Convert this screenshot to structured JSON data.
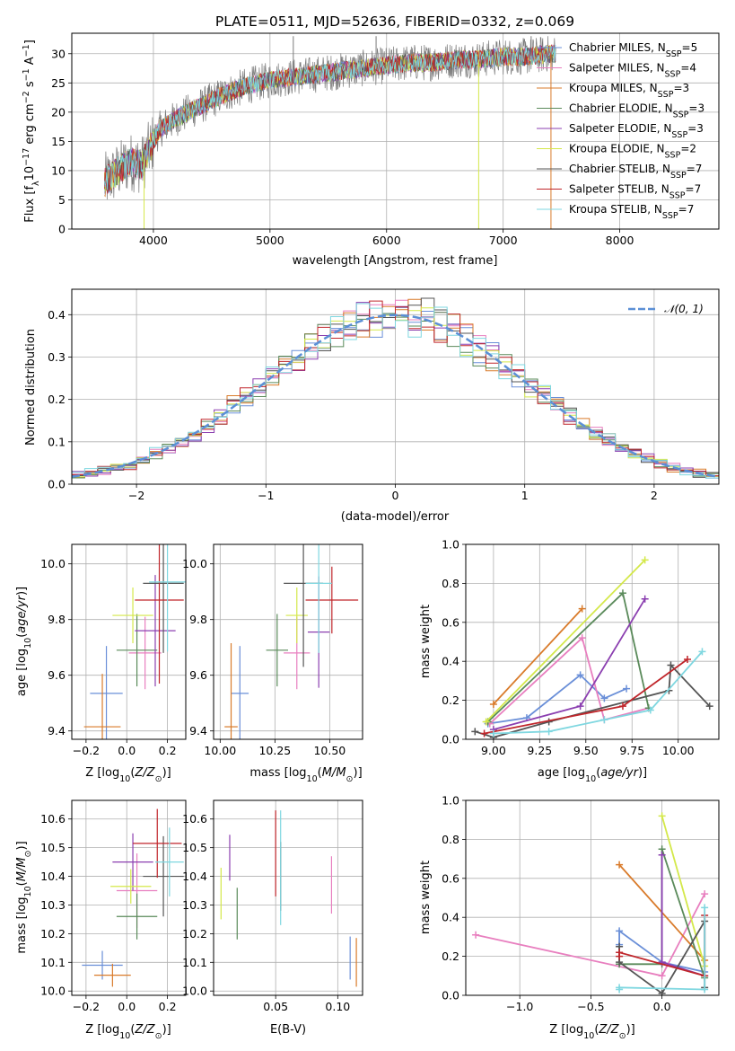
{
  "title": "PLATE=0511, MJD=52636, FIBERID=0332, z=0.069",
  "colors": {
    "chabrier_miles": "#6a8fd8",
    "salpeter_miles": "#e87fbf",
    "kroupa_miles": "#d97b2b",
    "chabrier_elodie": "#5a8a5a",
    "salpeter_elodie": "#8b3fb0",
    "kroupa_elodie": "#d4e84a",
    "chabrier_stelib": "#555555",
    "salpeter_stelib": "#c0262b",
    "kroupa_stelib": "#7fd7e0",
    "data_spectrum": "#7a7a7a",
    "normal_curve": "#5b8fd6"
  },
  "chart_data": [
    {
      "id": "spectrum",
      "type": "line",
      "xlabel": "wavelength [Angstrom, rest frame]",
      "ylabel": "Flux [f_λ 10^-17 erg cm^-2 s^-1 A^-1]",
      "xlim": [
        3300,
        8850
      ],
      "ylim": [
        0,
        33.5
      ],
      "xticks": [
        "4000",
        "5000",
        "6000",
        "7000",
        "8000"
      ],
      "yticks": [
        "0",
        "5",
        "10",
        "15",
        "20",
        "25",
        "30"
      ],
      "legend_position": "right",
      "legend": [
        "Chabrier MILES, N_SSP=5",
        "Salpeter MILES, N_SSP=4",
        "Kroupa MILES, N_SSP=3",
        "Chabrier ELODIE, N_SSP=3",
        "Salpeter ELODIE, N_SSP=3",
        "Kroupa ELODIE, N_SSP=2",
        "Chabrier STELIB, N_SSP=7",
        "Salpeter STELIB, N_SSP=7",
        "Kroupa STELIB, N_SSP=7"
      ],
      "continuum": {
        "x": [
          3580,
          3700,
          3800,
          3900,
          3950,
          4050,
          4200,
          4400,
          4600,
          4800,
          5000,
          5200,
          5400,
          5600,
          5800,
          6000,
          6200,
          6400,
          6600,
          6800,
          7000,
          7200,
          7400
        ],
        "y": [
          8,
          10,
          11.5,
          11,
          13,
          17,
          19,
          21,
          23,
          24.5,
          25.5,
          26,
          26.5,
          27,
          27.5,
          28,
          28.5,
          28.5,
          29,
          29,
          29.5,
          29.5,
          30
        ]
      },
      "spikes": [
        {
          "x": 3920,
          "y": 0
        },
        {
          "x": 5200,
          "y": 33
        },
        {
          "x": 5910,
          "y": 33
        },
        {
          "x": 6790,
          "y": 0
        },
        {
          "x": 7410,
          "y": 0
        },
        {
          "x": 7240,
          "y": 33
        }
      ]
    },
    {
      "id": "residuals",
      "type": "histogram",
      "xlabel": "(data-model)/error",
      "ylabel": "Normed distribution",
      "xlim": [
        -2.5,
        2.5
      ],
      "ylim": [
        0,
        0.46
      ],
      "xticks": [
        "−2",
        "−1",
        "0",
        "1",
        "2"
      ],
      "yticks": [
        "0.0",
        "0.1",
        "0.2",
        "0.3",
        "0.4"
      ],
      "legend_position": "top-right",
      "legend": "𝒩(0, 1)",
      "bin_width": 0.1,
      "bin_start": -2.5
    },
    {
      "id": "age_vs_Z",
      "type": "scatter",
      "xlabel": "Z [log10(Z/Z_sun)]",
      "ylabel": "age [log10(age/yr)]",
      "xlim": [
        -0.27,
        0.29
      ],
      "ylim": [
        9.37,
        10.07
      ],
      "xticks": [
        "−0.2",
        "0.0",
        "0.2"
      ],
      "yticks": [
        "9.4",
        "9.6",
        "9.8",
        "10.0"
      ],
      "points": [
        {
          "x": -0.1,
          "y": 9.535,
          "xerr": 0.08,
          "yerr": 0.17
        },
        {
          "x": 0.09,
          "y": 9.68,
          "xerr": 0.08,
          "yerr": 0.13
        },
        {
          "x": -0.12,
          "y": 9.415,
          "xerr": 0.09,
          "yerr": 0.19
        },
        {
          "x": 0.05,
          "y": 9.69,
          "xerr": 0.1,
          "yerr": 0.13
        },
        {
          "x": 0.14,
          "y": 9.76,
          "xerr": 0.1,
          "yerr": 0.2
        },
        {
          "x": 0.03,
          "y": 9.815,
          "xerr": 0.1,
          "yerr": 0.1
        },
        {
          "x": 0.18,
          "y": 9.93,
          "xerr": 0.1,
          "yerr": 0.25
        },
        {
          "x": 0.16,
          "y": 9.87,
          "xerr": 0.12,
          "yerr": 0.3
        },
        {
          "x": 0.2,
          "y": 9.935,
          "xerr": 0.09,
          "yerr": 0.25
        }
      ]
    },
    {
      "id": "age_vs_mass",
      "type": "scatter",
      "xlabel": "mass [log10(M/M_sun)]",
      "ylabel": "",
      "xlim": [
        9.97,
        10.65
      ],
      "ylim": [
        9.37,
        10.07
      ],
      "xticks": [
        "10.00",
        "10.25",
        "10.50"
      ],
      "yticks": [
        "9.4",
        "9.6",
        "9.8",
        "10.0"
      ],
      "points": [
        {
          "x": 10.09,
          "y": 9.535,
          "xerr": 0.04,
          "yerr": 0.17
        },
        {
          "x": 10.35,
          "y": 9.68,
          "xerr": 0.06,
          "yerr": 0.13
        },
        {
          "x": 10.05,
          "y": 9.415,
          "xerr": 0.03,
          "yerr": 0.3
        },
        {
          "x": 10.26,
          "y": 9.69,
          "xerr": 0.05,
          "yerr": 0.13
        },
        {
          "x": 10.45,
          "y": 9.755,
          "xerr": 0.05,
          "yerr": 0.2
        },
        {
          "x": 10.35,
          "y": 9.815,
          "xerr": 0.05,
          "yerr": 0.1
        },
        {
          "x": 10.38,
          "y": 9.93,
          "xerr": 0.09,
          "yerr": 0.3
        },
        {
          "x": 10.51,
          "y": 9.87,
          "xerr": 0.12,
          "yerr": 0.12
        },
        {
          "x": 10.45,
          "y": 9.93,
          "xerr": 0.06,
          "yerr": 0.25
        }
      ]
    },
    {
      "id": "weight_vs_age",
      "type": "line",
      "xlabel": "age [log10(age/yr)]",
      "ylabel": "mass weight",
      "xlim": [
        8.85,
        10.22
      ],
      "ylim": [
        0,
        1.0
      ],
      "xticks": [
        "9.00",
        "9.25",
        "9.50",
        "9.75",
        "10.00"
      ],
      "yticks": [
        "0.0",
        "0.2",
        "0.4",
        "0.6",
        "0.8",
        "1.0"
      ],
      "series": [
        {
          "x": [
            8.97,
            9.18,
            9.47,
            9.6,
            9.72
          ],
          "y": [
            0.08,
            0.11,
            0.33,
            0.21,
            0.26
          ]
        },
        {
          "x": [
            8.98,
            9.48,
            9.6,
            9.84
          ],
          "y": [
            0.08,
            0.52,
            0.1,
            0.16
          ]
        },
        {
          "x": [
            9.0,
            9.48
          ],
          "y": [
            0.18,
            0.67
          ]
        },
        {
          "x": [
            8.97,
            9.7,
            9.84
          ],
          "y": [
            0.09,
            0.75,
            0.16
          ]
        },
        {
          "x": [
            9.0,
            9.47,
            9.82
          ],
          "y": [
            0.05,
            0.17,
            0.72
          ]
        },
        {
          "x": [
            8.96,
            9.82
          ],
          "y": [
            0.09,
            0.92
          ]
        },
        {
          "x": [
            8.9,
            9.0,
            9.3,
            9.95,
            9.96,
            10.17
          ],
          "y": [
            0.04,
            0.01,
            0.09,
            0.25,
            0.38,
            0.17
          ]
        },
        {
          "x": [
            8.95,
            9.7,
            10.05
          ],
          "y": [
            0.03,
            0.17,
            0.41
          ]
        },
        {
          "x": [
            9.0,
            9.3,
            9.6,
            9.85,
            10.13
          ],
          "y": [
            0.03,
            0.04,
            0.1,
            0.15,
            0.45
          ]
        }
      ]
    },
    {
      "id": "mass_vs_Z",
      "type": "scatter",
      "xlabel": "Z [log10(Z/Z_sun)]",
      "ylabel": "mass [log10(M/M_sun)]",
      "xlim": [
        -0.27,
        0.29
      ],
      "ylim": [
        9.985,
        10.665
      ],
      "xticks": [
        "−0.2",
        "0.0",
        "0.2"
      ],
      "yticks": [
        "10.0",
        "10.1",
        "10.2",
        "10.3",
        "10.4",
        "10.5",
        "10.6"
      ],
      "points": [
        {
          "x": -0.12,
          "y": 10.09,
          "xerr": 0.1,
          "yerr": 0.05
        },
        {
          "x": 0.05,
          "y": 10.35,
          "xerr": 0.1,
          "yerr": 0.13
        },
        {
          "x": -0.07,
          "y": 10.055,
          "xerr": 0.09,
          "yerr": 0.04
        },
        {
          "x": 0.05,
          "y": 10.26,
          "xerr": 0.1,
          "yerr": 0.08
        },
        {
          "x": 0.03,
          "y": 10.45,
          "xerr": 0.1,
          "yerr": 0.1
        },
        {
          "x": 0.02,
          "y": 10.365,
          "xerr": 0.1,
          "yerr": 0.06
        },
        {
          "x": 0.18,
          "y": 10.4,
          "xerr": 0.1,
          "yerr": 0.14
        },
        {
          "x": 0.15,
          "y": 10.515,
          "xerr": 0.12,
          "yerr": 0.12
        },
        {
          "x": 0.21,
          "y": 10.45,
          "xerr": 0.07,
          "yerr": 0.12
        }
      ]
    },
    {
      "id": "mass_vs_ebv",
      "type": "scatter",
      "xlabel": "E(B-V)",
      "ylabel": "",
      "xlim": [
        0.0,
        0.12
      ],
      "ylim": [
        9.985,
        10.665
      ],
      "xticks": [
        "0.05",
        "0.10"
      ],
      "yticks": [
        "10.0",
        "10.1",
        "10.2",
        "10.3",
        "10.4",
        "10.5",
        "10.6"
      ],
      "points": [
        {
          "x": 0.11,
          "y": 10.115,
          "yerr": 0.075
        },
        {
          "x": 0.095,
          "y": 10.37,
          "yerr": 0.1
        },
        {
          "x": 0.115,
          "y": 10.1,
          "yerr": 0.085
        },
        {
          "x": 0.019,
          "y": 10.27,
          "yerr": 0.09
        },
        {
          "x": 0.013,
          "y": 10.465,
          "yerr": 0.08
        },
        {
          "x": 0.006,
          "y": 10.34,
          "yerr": 0.09
        },
        {
          "x": 0.054,
          "y": 10.4,
          "yerr": 0.12
        },
        {
          "x": 0.05,
          "y": 10.48,
          "yerr": 0.15
        },
        {
          "x": 0.054,
          "y": 10.43,
          "yerr": 0.2
        }
      ]
    },
    {
      "id": "weight_vs_Z",
      "type": "line",
      "xlabel": "Z [log10(Z/Z_sun)]",
      "ylabel": "mass weight",
      "xlim": [
        -1.38,
        0.4
      ],
      "ylim": [
        0,
        1.0
      ],
      "xticks": [
        "−1.0",
        "−0.5",
        "0.0"
      ],
      "yticks": [
        "0.0",
        "0.2",
        "0.4",
        "0.6",
        "0.8",
        "1.0"
      ],
      "series": [
        {
          "x": [
            -0.3,
            -0.3,
            0.0,
            0.3
          ],
          "y": [
            0.26,
            0.33,
            0.17,
            0.12
          ]
        },
        {
          "x": [
            -1.31,
            0.0,
            0.3
          ],
          "y": [
            0.31,
            0.1,
            0.52
          ]
        },
        {
          "x": [
            -0.3,
            0.3
          ],
          "y": [
            0.67,
            0.18
          ]
        },
        {
          "x": [
            -0.3,
            0.0,
            0.0,
            0.3
          ],
          "y": [
            0.16,
            0.16,
            0.75,
            0.09
          ]
        },
        {
          "x": [
            0.0,
            0.0,
            0.3
          ],
          "y": [
            0.72,
            0.17,
            0.1
          ]
        },
        {
          "x": [
            0.0,
            0.3
          ],
          "y": [
            0.92,
            0.15
          ]
        },
        {
          "x": [
            -0.3,
            -0.3,
            0.0,
            0.3,
            0.3
          ],
          "y": [
            0.25,
            0.17,
            0.01,
            0.38,
            0.04
          ]
        },
        {
          "x": [
            -0.3,
            -0.3,
            0.3,
            0.3
          ],
          "y": [
            0.2,
            0.22,
            0.1,
            0.41
          ]
        },
        {
          "x": [
            -0.3,
            -0.3,
            0.3,
            0.3
          ],
          "y": [
            0.03,
            0.04,
            0.03,
            0.45
          ]
        }
      ]
    }
  ]
}
